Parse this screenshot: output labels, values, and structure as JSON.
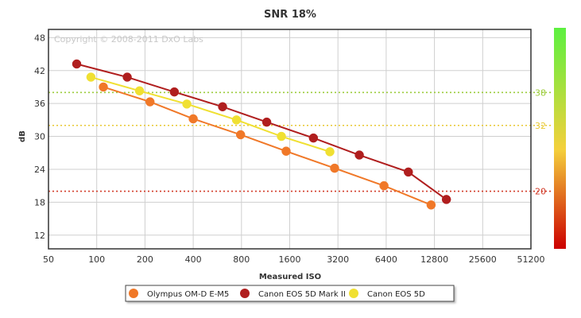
{
  "chart_data": {
    "type": "scatter",
    "title": "SNR 18%",
    "xlabel": "Measured ISO",
    "ylabel": "dB",
    "x_scale": "log2",
    "x_ticks": [
      50,
      100,
      200,
      400,
      800,
      1600,
      3200,
      6400,
      12800,
      25600,
      51200
    ],
    "xlim": [
      50,
      51200
    ],
    "y_ticks": [
      12,
      18,
      24,
      30,
      36,
      42,
      48
    ],
    "ylim": [
      9.5,
      49.5
    ],
    "grid": true,
    "watermark": "Copyright © 2008-2011 DxO Labs",
    "reference_lines": [
      {
        "value": 38,
        "label": "38",
        "color": "#9ccc3c"
      },
      {
        "value": 32,
        "label": "32",
        "color": "#e8c832"
      },
      {
        "value": 20,
        "label": "20",
        "color": "#d23c2a"
      }
    ],
    "color_scale": {
      "colors": [
        "#5cf040",
        "#f4d03c",
        "#cc0000"
      ]
    },
    "legend_position": "bottom",
    "series": [
      {
        "name": "Olympus OM-D E-M5",
        "color": "#f07828",
        "x": [
          110,
          215,
          400,
          790,
          1520,
          3050,
          6200,
          12200
        ],
        "y": [
          39.0,
          36.3,
          33.2,
          30.3,
          27.3,
          24.2,
          21.0,
          17.5
        ]
      },
      {
        "name": "Canon EOS 5D Mark II",
        "color": "#b01e1e",
        "x": [
          75,
          155,
          305,
          610,
          1150,
          2250,
          4350,
          8800,
          15200
        ],
        "y": [
          43.2,
          40.8,
          38.1,
          35.4,
          32.6,
          29.7,
          26.6,
          23.5,
          18.5
        ]
      },
      {
        "name": "Canon EOS 5D",
        "color": "#f0e032",
        "x": [
          92,
          185,
          365,
          745,
          1420,
          2850
        ],
        "y": [
          40.8,
          38.3,
          35.9,
          33.0,
          30.0,
          27.2
        ]
      }
    ]
  }
}
